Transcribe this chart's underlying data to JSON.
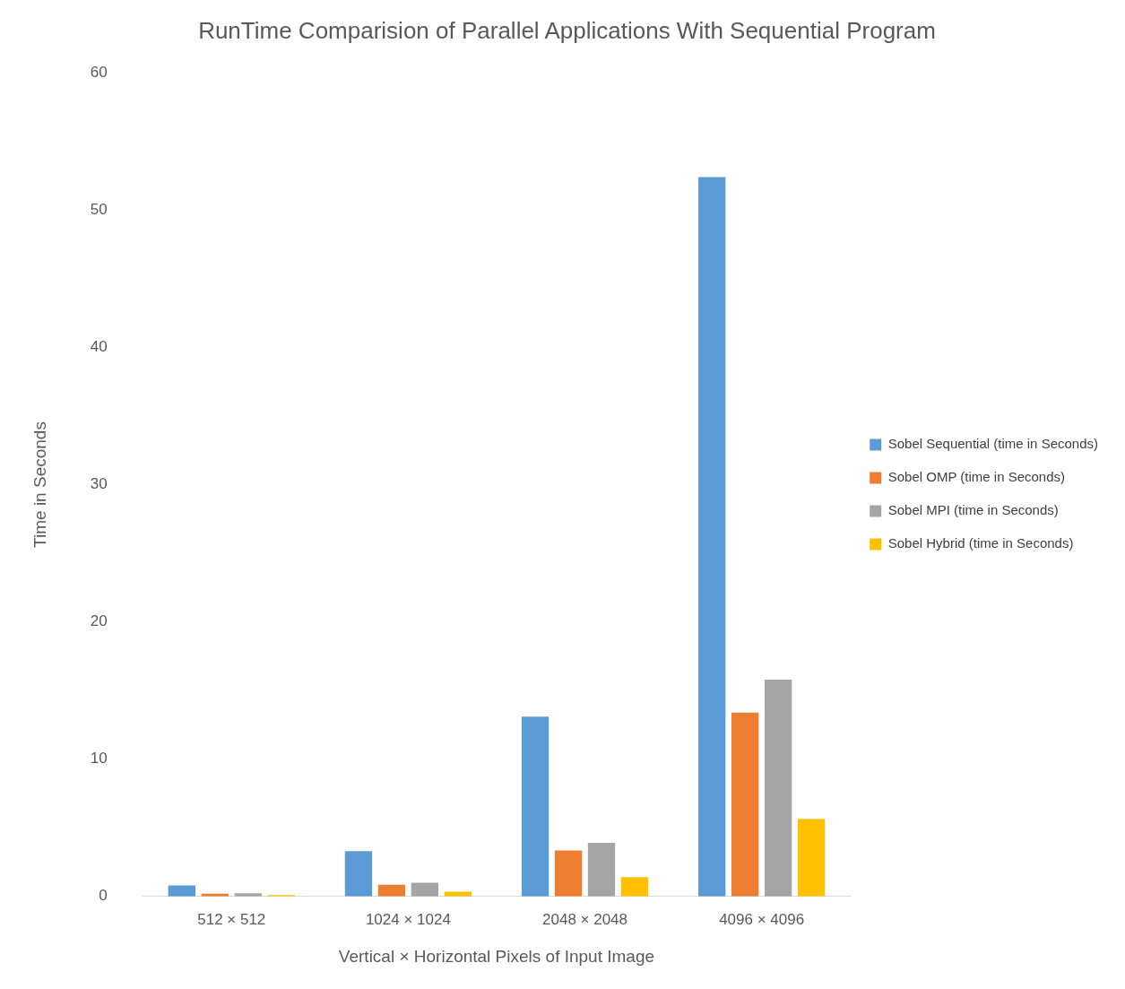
{
  "chart_data": {
    "type": "bar",
    "title": "RunTime Comparision of Parallel Applications With Sequential Program",
    "xlabel": "Vertical × Horizontal Pixels of Input Image",
    "ylabel": "Time in Seconds",
    "categories": [
      "512 × 512",
      "1024 × 1024",
      "2048 × 2048",
      "4096 × 4096"
    ],
    "series": [
      {
        "name": "Sobel Sequential (time in Seconds)",
        "color": "#5b9bd5",
        "values": [
          0.8,
          3.3,
          13.1,
          52.4
        ]
      },
      {
        "name": "Sobel OMP (time in Seconds)",
        "color": "#ed7d31",
        "values": [
          0.2,
          0.85,
          3.35,
          13.4
        ]
      },
      {
        "name": "Sobel MPI (time in Seconds)",
        "color": "#a5a5a5",
        "values": [
          0.23,
          1.0,
          3.9,
          15.8
        ]
      },
      {
        "name": "Sobel Hybrid (time in Seconds)",
        "color": "#ffc000",
        "values": [
          0.1,
          0.35,
          1.4,
          5.65
        ]
      }
    ],
    "ylim": [
      0,
      60
    ],
    "yticks": [
      0,
      10,
      20,
      30,
      40,
      50,
      60
    ],
    "grid": false,
    "legend": "right"
  }
}
